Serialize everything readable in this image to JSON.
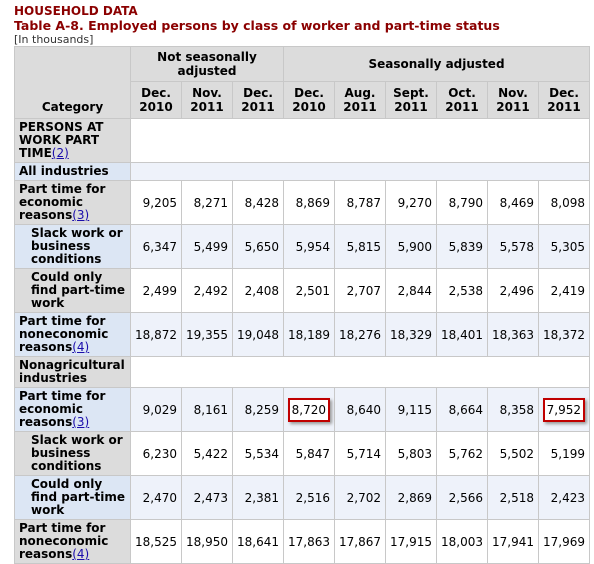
{
  "header": {
    "section": "HOUSEHOLD DATA",
    "title": "Table A-8. Employed persons by class of worker and part-time status",
    "units": "[In thousands]"
  },
  "columns": {
    "category": "Category",
    "group_nsa": "Not seasonally adjusted",
    "group_sa": "Seasonally adjusted",
    "months": [
      {
        "m": "Dec.",
        "y": "2010"
      },
      {
        "m": "Nov.",
        "y": "2011"
      },
      {
        "m": "Dec.",
        "y": "2011"
      },
      {
        "m": "Dec.",
        "y": "2010"
      },
      {
        "m": "Aug.",
        "y": "2011"
      },
      {
        "m": "Sept.",
        "y": "2011"
      },
      {
        "m": "Oct.",
        "y": "2011"
      },
      {
        "m": "Nov.",
        "y": "2011"
      },
      {
        "m": "Dec.",
        "y": "2011"
      }
    ]
  },
  "rows": {
    "section_main": {
      "label": "PERSONS AT WORK PART TIME",
      "fn": "(2)"
    },
    "all_industries": {
      "label": "All industries"
    },
    "r1": {
      "label": "Part time for economic reasons",
      "fn": "(3)",
      "values": [
        "9,205",
        "8,271",
        "8,428",
        "8,869",
        "8,787",
        "9,270",
        "8,790",
        "8,469",
        "8,098"
      ]
    },
    "r2": {
      "label": "Slack work or business conditions",
      "values": [
        "6,347",
        "5,499",
        "5,650",
        "5,954",
        "5,815",
        "5,900",
        "5,839",
        "5,578",
        "5,305"
      ]
    },
    "r3": {
      "label": "Could only find part-time work",
      "values": [
        "2,499",
        "2,492",
        "2,408",
        "2,501",
        "2,707",
        "2,844",
        "2,538",
        "2,496",
        "2,419"
      ]
    },
    "r4": {
      "label": "Part time for noneconomic reasons",
      "fn": "(4)",
      "values": [
        "18,872",
        "19,355",
        "19,048",
        "18,189",
        "18,276",
        "18,329",
        "18,401",
        "18,363",
        "18,372"
      ]
    },
    "nonag": {
      "label": "Nonagricultural industries"
    },
    "r5": {
      "label": "Part time for economic reasons",
      "fn": "(3)",
      "values": [
        "9,029",
        "8,161",
        "8,259",
        "8,720",
        "8,640",
        "9,115",
        "8,664",
        "8,358",
        "7,952"
      ]
    },
    "r6": {
      "label": "Slack work or business conditions",
      "values": [
        "6,230",
        "5,422",
        "5,534",
        "5,847",
        "5,714",
        "5,803",
        "5,762",
        "5,502",
        "5,199"
      ]
    },
    "r7": {
      "label": "Could only find part-time work",
      "values": [
        "2,470",
        "2,473",
        "2,381",
        "2,516",
        "2,702",
        "2,869",
        "2,566",
        "2,518",
        "2,423"
      ]
    },
    "r8": {
      "label": "Part time for noneconomic reasons",
      "fn": "(4)",
      "values": [
        "18,525",
        "18,950",
        "18,641",
        "17,863",
        "17,867",
        "17,915",
        "18,003",
        "17,941",
        "17,969"
      ]
    }
  },
  "highlight_color": "#c00000"
}
